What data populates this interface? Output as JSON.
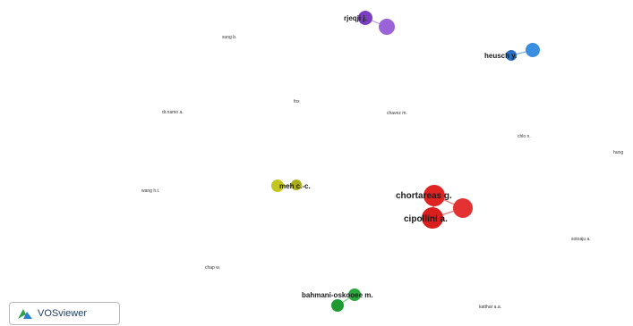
{
  "viewer": {
    "brand": "VOSviewer",
    "colors": {
      "red": "#e02424",
      "green": "#22a33a",
      "blue": "#2a7fd0",
      "purple": "#8a4fcf",
      "yellow": "#b9be1c"
    }
  },
  "clusters": [
    {
      "name": "red",
      "color": "#e02424"
    },
    {
      "name": "green",
      "color": "#22a33a"
    },
    {
      "name": "blue",
      "color": "#2a7fd0"
    },
    {
      "name": "purple",
      "color": "#8a4fcf"
    },
    {
      "name": "yellow",
      "color": "#b9be1c"
    }
  ],
  "labels": {
    "rjeqji": "rjeqji j.",
    "sung": "sung b.",
    "heusch": "heusch y.",
    "fox": "fox",
    "dinamo": "dr.namo a.",
    "chavez": "chavez m.",
    "chb": "chlo n.",
    "hung": "hung",
    "wang": "wang h.t.",
    "meh": "meh c.-c.",
    "chortareas": "chortareas g.",
    "cipollini": "cipollini a.",
    "sotoaju": "sotoaju a.",
    "chap": "chap w.",
    "bahmani": "bahmani-oskooee m.",
    "katthar": "katthar a.a."
  }
}
